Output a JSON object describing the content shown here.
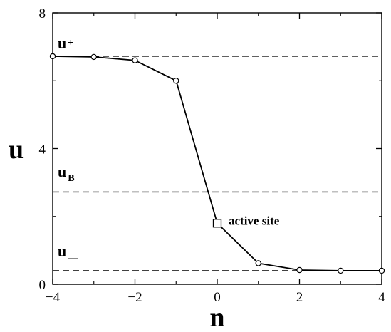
{
  "chart_data": {
    "type": "line",
    "title": "",
    "xlabel": "n",
    "ylabel": "u",
    "xlim": [
      -4,
      4
    ],
    "ylim": [
      0,
      8
    ],
    "xticks": [
      -4,
      -2,
      0,
      2,
      4
    ],
    "xtick_labels": [
      "−4",
      "−2",
      "0",
      "2",
      "4"
    ],
    "yticks": [
      0,
      4,
      8
    ],
    "ytick_labels": [
      "0",
      "4",
      "8"
    ],
    "grid": false,
    "series": [
      {
        "x": [
          -4,
          -3,
          -2,
          -1,
          0,
          1,
          2,
          3,
          4
        ],
        "y": [
          6.72,
          6.7,
          6.6,
          6.0,
          1.8,
          0.62,
          0.42,
          0.4,
          0.4
        ],
        "color": "#000000",
        "marker": "circle-open",
        "special_marker": {
          "index": 4,
          "shape": "square-open"
        }
      }
    ],
    "reference_lines": [
      {
        "y": 6.72,
        "style": "dashed",
        "label_main": "u",
        "label_sub": "+"
      },
      {
        "y": 2.72,
        "style": "dashed",
        "label_main": "u",
        "label_sub": "B"
      },
      {
        "y": 0.4,
        "style": "dashed",
        "label_main": "u",
        "label_sub": "—"
      }
    ],
    "annotations": [
      {
        "text": "active site",
        "x": 0,
        "y": 1.8
      }
    ]
  }
}
